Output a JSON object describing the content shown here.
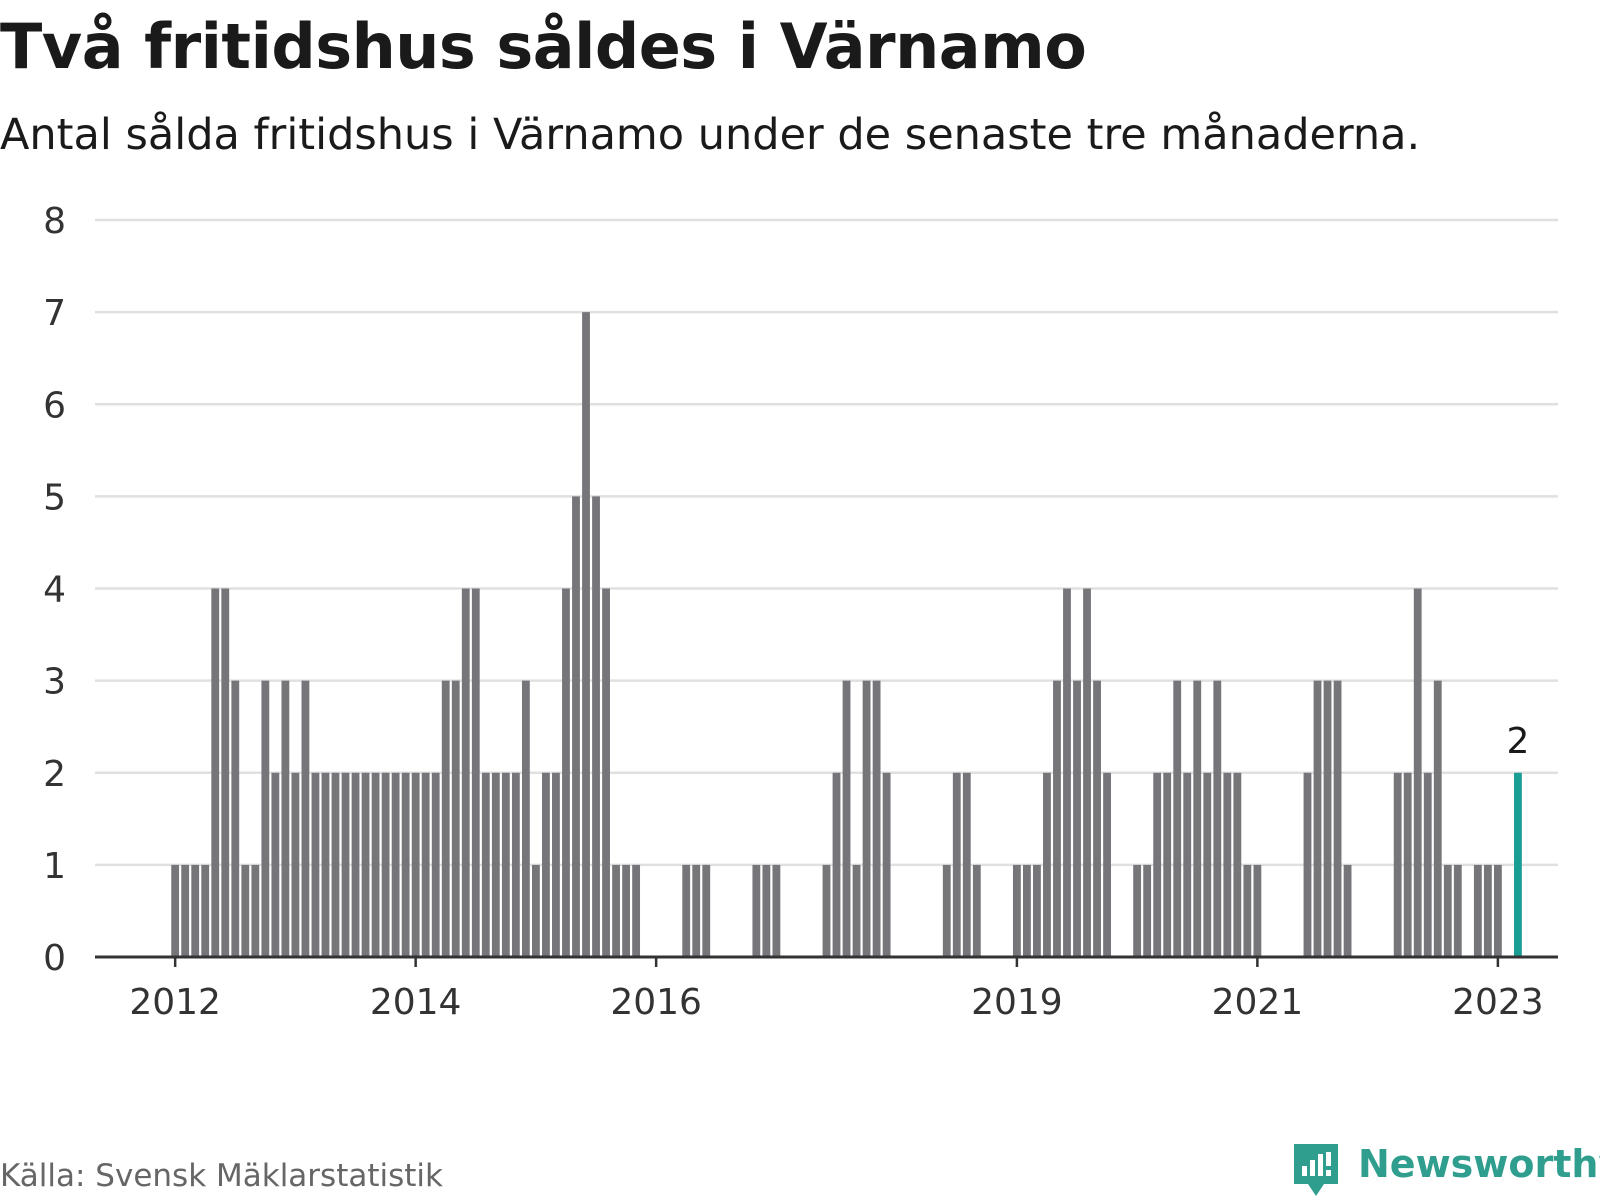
{
  "header": {
    "title": "Två fritidshus såldes i Värnamo",
    "subtitle": "Antal sålda fritidshus i Värnamo under de senaste tre månaderna."
  },
  "footer": {
    "source": "Källa: Svensk Mäklarstatistik",
    "brand": "Newsworthy"
  },
  "colors": {
    "bar": "#75757a",
    "highlight": "#1a9e94",
    "grid": "#e0e0e0",
    "axis": "#333333",
    "brand": "#2f9e8f"
  },
  "icons": {
    "brand_logo": "newsworthy-logo-icon"
  },
  "chart_data": {
    "type": "bar",
    "title": "Två fritidshus såldes i Värnamo",
    "subtitle": "Antal sålda fritidshus i Värnamo under de senaste tre månaderna.",
    "xlabel": "",
    "ylabel": "",
    "ylim": [
      0,
      8
    ],
    "yticks": [
      0,
      1,
      2,
      3,
      4,
      5,
      6,
      7,
      8
    ],
    "grid": true,
    "x_start": "2011-05",
    "x_end": "2023-07",
    "xticks": [
      {
        "label": "2012",
        "month": "2012-01"
      },
      {
        "label": "2014",
        "month": "2014-01"
      },
      {
        "label": "2016",
        "month": "2016-01"
      },
      {
        "label": "2019",
        "month": "2019-01"
      },
      {
        "label": "2021",
        "month": "2021-01"
      },
      {
        "label": "2023",
        "month": "2023-01"
      }
    ],
    "series": [
      {
        "values": [
          {
            "month": "2012-01",
            "value": 1
          },
          {
            "month": "2012-02",
            "value": 1
          },
          {
            "month": "2012-03",
            "value": 1
          },
          {
            "month": "2012-04",
            "value": 1
          },
          {
            "month": "2012-05",
            "value": 4
          },
          {
            "month": "2012-06",
            "value": 4
          },
          {
            "month": "2012-07",
            "value": 3
          },
          {
            "month": "2012-08",
            "value": 1
          },
          {
            "month": "2012-09",
            "value": 1
          },
          {
            "month": "2012-10",
            "value": 3
          },
          {
            "month": "2012-11",
            "value": 2
          },
          {
            "month": "2012-12",
            "value": 3
          },
          {
            "month": "2013-01",
            "value": 2
          },
          {
            "month": "2013-02",
            "value": 3
          },
          {
            "month": "2013-03",
            "value": 2
          },
          {
            "month": "2013-04",
            "value": 2
          },
          {
            "month": "2013-05",
            "value": 2
          },
          {
            "month": "2013-06",
            "value": 2
          },
          {
            "month": "2013-07",
            "value": 2
          },
          {
            "month": "2013-08",
            "value": 2
          },
          {
            "month": "2013-09",
            "value": 2
          },
          {
            "month": "2013-10",
            "value": 2
          },
          {
            "month": "2013-11",
            "value": 2
          },
          {
            "month": "2013-12",
            "value": 2
          },
          {
            "month": "2014-01",
            "value": 2
          },
          {
            "month": "2014-02",
            "value": 2
          },
          {
            "month": "2014-03",
            "value": 2
          },
          {
            "month": "2014-04",
            "value": 3
          },
          {
            "month": "2014-05",
            "value": 3
          },
          {
            "month": "2014-06",
            "value": 4
          },
          {
            "month": "2014-07",
            "value": 4
          },
          {
            "month": "2014-08",
            "value": 2
          },
          {
            "month": "2014-09",
            "value": 2
          },
          {
            "month": "2014-10",
            "value": 2
          },
          {
            "month": "2014-11",
            "value": 2
          },
          {
            "month": "2014-12",
            "value": 3
          },
          {
            "month": "2015-01",
            "value": 1
          },
          {
            "month": "2015-02",
            "value": 2
          },
          {
            "month": "2015-03",
            "value": 2
          },
          {
            "month": "2015-04",
            "value": 4
          },
          {
            "month": "2015-05",
            "value": 5
          },
          {
            "month": "2015-06",
            "value": 7
          },
          {
            "month": "2015-07",
            "value": 5
          },
          {
            "month": "2015-08",
            "value": 4
          },
          {
            "month": "2015-09",
            "value": 1
          },
          {
            "month": "2015-10",
            "value": 1
          },
          {
            "month": "2015-11",
            "value": 1
          },
          {
            "month": "2016-04",
            "value": 1
          },
          {
            "month": "2016-05",
            "value": 1
          },
          {
            "month": "2016-06",
            "value": 1
          },
          {
            "month": "2016-11",
            "value": 1
          },
          {
            "month": "2016-12",
            "value": 1
          },
          {
            "month": "2017-01",
            "value": 1
          },
          {
            "month": "2017-06",
            "value": 1
          },
          {
            "month": "2017-07",
            "value": 2
          },
          {
            "month": "2017-08",
            "value": 3
          },
          {
            "month": "2017-09",
            "value": 1
          },
          {
            "month": "2017-10",
            "value": 3
          },
          {
            "month": "2017-11",
            "value": 3
          },
          {
            "month": "2017-12",
            "value": 2
          },
          {
            "month": "2018-06",
            "value": 1
          },
          {
            "month": "2018-07",
            "value": 2
          },
          {
            "month": "2018-08",
            "value": 2
          },
          {
            "month": "2018-09",
            "value": 1
          },
          {
            "month": "2019-01",
            "value": 1
          },
          {
            "month": "2019-02",
            "value": 1
          },
          {
            "month": "2019-03",
            "value": 1
          },
          {
            "month": "2019-04",
            "value": 2
          },
          {
            "month": "2019-05",
            "value": 3
          },
          {
            "month": "2019-06",
            "value": 4
          },
          {
            "month": "2019-07",
            "value": 3
          },
          {
            "month": "2019-08",
            "value": 4
          },
          {
            "month": "2019-09",
            "value": 3
          },
          {
            "month": "2019-10",
            "value": 2
          },
          {
            "month": "2020-01",
            "value": 1
          },
          {
            "month": "2020-02",
            "value": 1
          },
          {
            "month": "2020-03",
            "value": 2
          },
          {
            "month": "2020-04",
            "value": 2
          },
          {
            "month": "2020-05",
            "value": 3
          },
          {
            "month": "2020-06",
            "value": 2
          },
          {
            "month": "2020-07",
            "value": 3
          },
          {
            "month": "2020-08",
            "value": 2
          },
          {
            "month": "2020-09",
            "value": 3
          },
          {
            "month": "2020-10",
            "value": 2
          },
          {
            "month": "2020-11",
            "value": 2
          },
          {
            "month": "2020-12",
            "value": 1
          },
          {
            "month": "2021-01",
            "value": 1
          },
          {
            "month": "2021-06",
            "value": 2
          },
          {
            "month": "2021-07",
            "value": 3
          },
          {
            "month": "2021-08",
            "value": 3
          },
          {
            "month": "2021-09",
            "value": 3
          },
          {
            "month": "2021-10",
            "value": 1
          },
          {
            "month": "2022-03",
            "value": 2
          },
          {
            "month": "2022-04",
            "value": 2
          },
          {
            "month": "2022-05",
            "value": 4
          },
          {
            "month": "2022-06",
            "value": 2
          },
          {
            "month": "2022-07",
            "value": 3
          },
          {
            "month": "2022-08",
            "value": 1
          },
          {
            "month": "2022-09",
            "value": 1
          },
          {
            "month": "2022-11",
            "value": 1
          },
          {
            "month": "2022-12",
            "value": 1
          },
          {
            "month": "2023-01",
            "value": 1
          },
          {
            "month": "2023-03",
            "value": 2
          }
        ]
      }
    ],
    "highlight": {
      "month": "2023-03",
      "value": 2,
      "label": "2"
    }
  }
}
